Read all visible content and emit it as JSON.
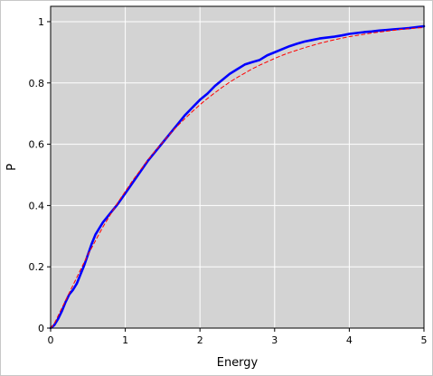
{
  "chart_data": {
    "type": "line",
    "title": "",
    "xlabel": "Energy",
    "ylabel": "P",
    "xlim": [
      0,
      5
    ],
    "ylim": [
      0,
      1.05
    ],
    "x_ticks": [
      0,
      1,
      2,
      3,
      4,
      5
    ],
    "x_tick_labels": [
      "0",
      "1",
      "2",
      "3",
      "4",
      "5"
    ],
    "y_ticks": [
      0,
      0.2,
      0.4,
      0.6,
      0.8,
      1.0
    ],
    "y_tick_labels": [
      "0",
      "0.2",
      "0.4",
      "0.6",
      "0.8",
      "1"
    ],
    "grid": true,
    "legend": "none",
    "plot_background": "#d3d3d3",
    "grid_color": "#ffffff",
    "series": [
      {
        "style": "solid",
        "color": "#0000ff",
        "x": [
          0.0,
          0.05,
          0.1,
          0.15,
          0.2,
          0.25,
          0.3,
          0.35,
          0.4,
          0.45,
          0.5,
          0.55,
          0.6,
          0.7,
          0.8,
          0.9,
          1.0,
          1.1,
          1.2,
          1.3,
          1.4,
          1.5,
          1.6,
          1.7,
          1.8,
          1.9,
          2.0,
          2.1,
          2.2,
          2.3,
          2.4,
          2.5,
          2.6,
          2.7,
          2.8,
          2.9,
          3.0,
          3.1,
          3.2,
          3.3,
          3.4,
          3.5,
          3.6,
          3.7,
          3.8,
          3.9,
          4.0,
          4.1,
          4.2,
          4.3,
          4.4,
          4.5,
          4.6,
          4.7,
          4.8,
          4.9,
          5.0
        ],
        "y": [
          0.0,
          0.01,
          0.03,
          0.055,
          0.085,
          0.11,
          0.125,
          0.145,
          0.175,
          0.205,
          0.24,
          0.275,
          0.305,
          0.345,
          0.375,
          0.405,
          0.44,
          0.475,
          0.51,
          0.545,
          0.575,
          0.605,
          0.635,
          0.665,
          0.695,
          0.72,
          0.745,
          0.765,
          0.79,
          0.81,
          0.83,
          0.845,
          0.86,
          0.868,
          0.875,
          0.89,
          0.9,
          0.91,
          0.92,
          0.928,
          0.935,
          0.94,
          0.945,
          0.948,
          0.951,
          0.955,
          0.96,
          0.963,
          0.966,
          0.968,
          0.971,
          0.973,
          0.975,
          0.977,
          0.979,
          0.982,
          0.985
        ]
      },
      {
        "style": "dashed",
        "color": "#ff0000",
        "x": [
          0.0,
          0.05,
          0.1,
          0.15,
          0.2,
          0.25,
          0.3,
          0.35,
          0.4,
          0.45,
          0.5,
          0.55,
          0.6,
          0.7,
          0.8,
          0.9,
          1.0,
          1.1,
          1.2,
          1.3,
          1.4,
          1.5,
          1.6,
          1.7,
          1.8,
          1.9,
          2.0,
          2.1,
          2.2,
          2.3,
          2.4,
          2.5,
          2.6,
          2.7,
          2.8,
          2.9,
          3.0,
          3.1,
          3.2,
          3.3,
          3.4,
          3.5,
          3.6,
          3.7,
          3.8,
          3.9,
          4.0,
          4.1,
          4.2,
          4.3,
          4.4,
          4.5,
          4.6,
          4.7,
          4.8,
          4.9,
          5.0
        ],
        "y": [
          0.0,
          0.015,
          0.04,
          0.065,
          0.09,
          0.115,
          0.14,
          0.165,
          0.19,
          0.215,
          0.24,
          0.262,
          0.285,
          0.33,
          0.37,
          0.41,
          0.446,
          0.482,
          0.515,
          0.548,
          0.578,
          0.606,
          0.634,
          0.66,
          0.684,
          0.707,
          0.729,
          0.749,
          0.768,
          0.786,
          0.803,
          0.818,
          0.832,
          0.846,
          0.858,
          0.869,
          0.88,
          0.89,
          0.899,
          0.907,
          0.915,
          0.922,
          0.929,
          0.935,
          0.941,
          0.946,
          0.951,
          0.955,
          0.959,
          0.963,
          0.966,
          0.969,
          0.972,
          0.975,
          0.977,
          0.979,
          0.981
        ]
      }
    ]
  }
}
